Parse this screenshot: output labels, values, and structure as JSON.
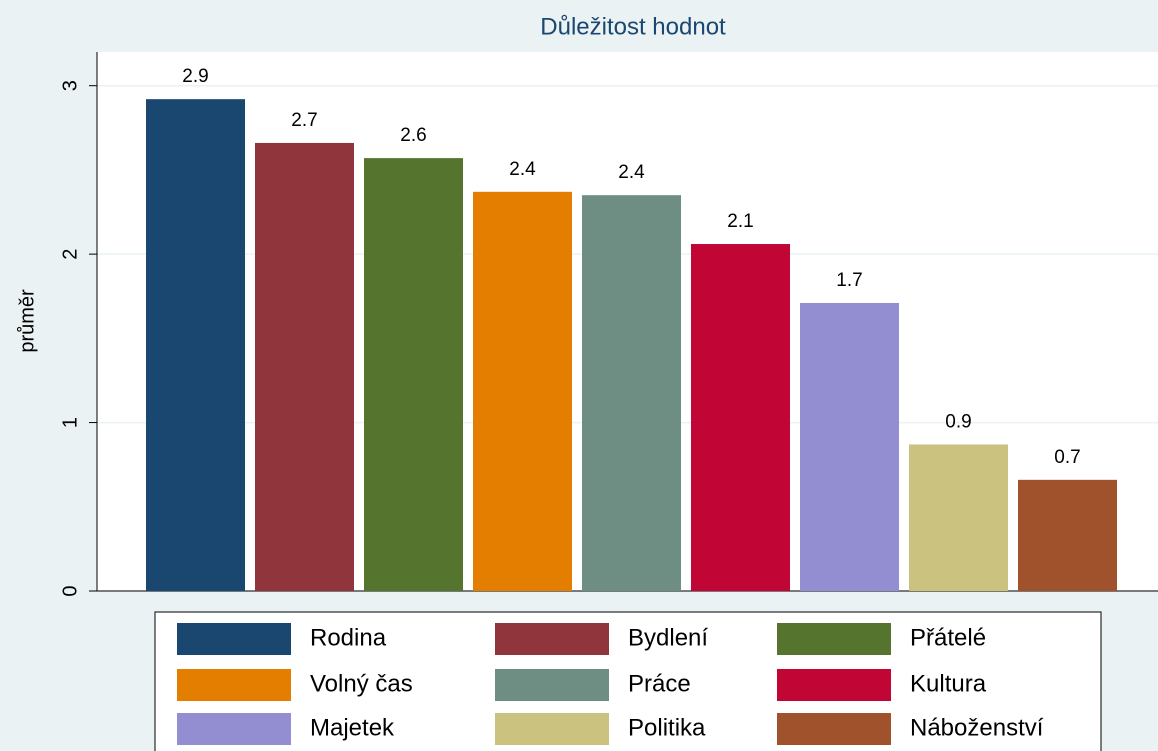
{
  "chart_data": {
    "type": "bar",
    "title": "Důležitost hodnot",
    "ylabel": "průměr",
    "categories": [
      "Rodina",
      "Bydlení",
      "Přátelé",
      "Volný čas",
      "Práce",
      "Kultura",
      "Majetek",
      "Politika",
      "Náboženství"
    ],
    "values": [
      2.92,
      2.66,
      2.57,
      2.37,
      2.35,
      2.06,
      1.71,
      0.87,
      0.66
    ],
    "value_labels": [
      "2.9",
      "2.7",
      "2.6",
      "2.4",
      "2.4",
      "2.1",
      "1.7",
      "0.9",
      "0.7"
    ],
    "colors": [
      "#1a476f",
      "#90353b",
      "#55752f",
      "#e37e00",
      "#6e8e84",
      "#c10534",
      "#938dd2",
      "#cac27e",
      "#a0522d"
    ],
    "ylim": [
      0,
      3.2
    ],
    "yticks": [
      0,
      1,
      2,
      3
    ],
    "grid": true,
    "legend": "bottom"
  }
}
